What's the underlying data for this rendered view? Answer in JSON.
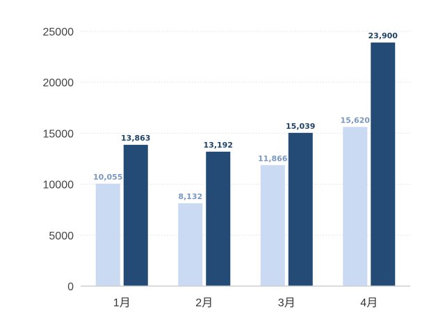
{
  "chart_data": {
    "type": "bar",
    "categories": [
      "1月",
      "2月",
      "3月",
      "4月"
    ],
    "series": [
      {
        "values": [
          10055,
          8132,
          11866,
          15620
        ],
        "labels": [
          "10,055",
          "8,132",
          "11,866",
          "15,620"
        ],
        "color": "#c9daf2",
        "label_color": "#7a97c2"
      },
      {
        "values": [
          13863,
          13192,
          15039,
          23900
        ],
        "labels": [
          "13,863",
          "13,192",
          "15,039",
          "23,900"
        ],
        "color": "#244b76",
        "label_color": "#1f4266"
      }
    ],
    "y_ticks": [
      "0",
      "5000",
      "10000",
      "15000",
      "20000",
      "25000"
    ],
    "ylim": [
      0,
      25000
    ],
    "grid": true,
    "legend": "none"
  }
}
